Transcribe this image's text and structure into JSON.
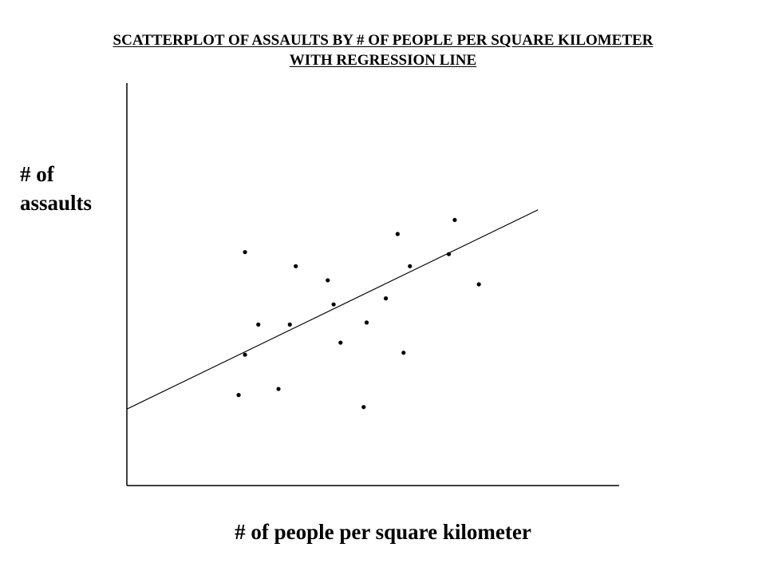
{
  "chart_data": {
    "type": "scatter",
    "title_line1": "SCATTERPLOT OF ASSAULTS BY # OF PEOPLE PER SQUARE KILOMETER",
    "title_line2": "WITH REGRESSION LINE",
    "ylabel_line1": "# of",
    "ylabel_line2": "assaults",
    "xlabel": "# of people per square kilometer",
    "grid": false,
    "legend": "none",
    "xlim": [
      0,
      100
    ],
    "ylim": [
      0,
      100
    ],
    "points": [
      {
        "x": 24.0,
        "y": 58.0
      },
      {
        "x": 26.7,
        "y": 40.0
      },
      {
        "x": 24.0,
        "y": 32.5
      },
      {
        "x": 22.7,
        "y": 22.5
      },
      {
        "x": 30.8,
        "y": 24.0
      },
      {
        "x": 34.3,
        "y": 54.5
      },
      {
        "x": 33.1,
        "y": 40.0
      },
      {
        "x": 40.8,
        "y": 51.0
      },
      {
        "x": 42.0,
        "y": 45.0
      },
      {
        "x": 43.4,
        "y": 35.5
      },
      {
        "x": 48.7,
        "y": 40.5
      },
      {
        "x": 48.1,
        "y": 19.5
      },
      {
        "x": 52.6,
        "y": 46.5
      },
      {
        "x": 55.0,
        "y": 62.5
      },
      {
        "x": 56.2,
        "y": 33.0
      },
      {
        "x": 57.5,
        "y": 54.5
      },
      {
        "x": 65.4,
        "y": 57.5
      },
      {
        "x": 66.6,
        "y": 66.0
      },
      {
        "x": 71.5,
        "y": 50.0
      }
    ],
    "regression_line": {
      "x": [
        0,
        83.5
      ],
      "y": [
        19,
        68.5
      ]
    },
    "colors": {
      "points": "#000000",
      "line": "#000000",
      "axes": "#000000"
    }
  }
}
